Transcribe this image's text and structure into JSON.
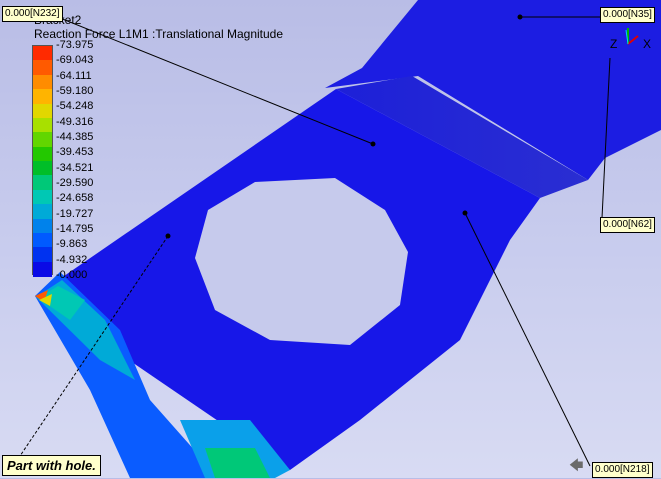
{
  "model": {
    "name": "Bracket2",
    "result_title": "Reaction Force L1M1 :Translational Magnitude"
  },
  "legend": {
    "labels": [
      "73.975",
      "69.043",
      "64.111",
      "59.180",
      "54.248",
      "49.316",
      "44.385",
      "39.453",
      "34.521",
      "29.590",
      "24.658",
      "19.727",
      "14.795",
      "9.863",
      "4.932",
      "0.000"
    ],
    "colors": [
      "#ff2a00",
      "#ff5a00",
      "#ff8c00",
      "#ffb400",
      "#e1d700",
      "#a8e000",
      "#62d600",
      "#23c800",
      "#00be28",
      "#00c878",
      "#00c8b4",
      "#00aad7",
      "#0082eb",
      "#005aff",
      "#0032f0",
      "#0a0ae6"
    ]
  },
  "probes": [
    {
      "id": "n232",
      "text": "0.000[N232]"
    },
    {
      "id": "n35",
      "text": "0.000[N35]"
    },
    {
      "id": "n62",
      "text": "0.000[N62]"
    },
    {
      "id": "n218",
      "text": "0.000[N218]"
    }
  ],
  "note": {
    "text": "Part with hole."
  },
  "axes": {
    "z": "Z",
    "x": "X"
  },
  "nav": {
    "icon": "arrow-left-icon"
  },
  "colors": {
    "part": "#1a1ae6",
    "background": "#c5c9ec",
    "tag_bg": "#ffffcc"
  }
}
